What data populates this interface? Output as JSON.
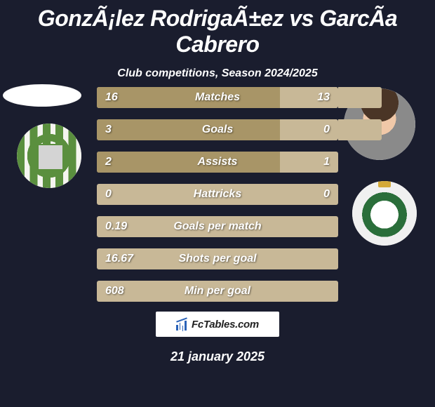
{
  "title": "GonzÃ¡lez RodrigaÃ±ez vs GarcÃ­a Cabrero",
  "subtitle": "Club competitions, Season 2024/2025",
  "date": "21 january 2025",
  "logo_text": "FcTables.com",
  "colors": {
    "background": "#1a1d2e",
    "bar_bg": "#c8b897",
    "bar_fill": "#a89567"
  },
  "bars": [
    {
      "label": "Matches",
      "left": "16",
      "right": "13",
      "fill_pct": 76,
      "overhang_pct": 18
    },
    {
      "label": "Goals",
      "left": "3",
      "right": "0",
      "fill_pct": 76,
      "overhang_pct": 18
    },
    {
      "label": "Assists",
      "left": "2",
      "right": "1",
      "fill_pct": 76,
      "overhang_pct": 0
    },
    {
      "label": "Hattricks",
      "left": "0",
      "right": "0",
      "fill_pct": 0,
      "overhang_pct": 0
    },
    {
      "label": "Goals per match",
      "left": "0.19",
      "right": "",
      "fill_pct": 0,
      "overhang_pct": 0
    },
    {
      "label": "Shots per goal",
      "left": "16.67",
      "right": "",
      "fill_pct": 0,
      "overhang_pct": 0
    },
    {
      "label": "Min per goal",
      "left": "608",
      "right": "",
      "fill_pct": 0,
      "overhang_pct": 0
    }
  ]
}
